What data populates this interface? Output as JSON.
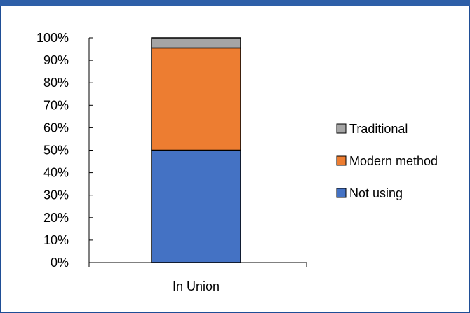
{
  "chart_data": {
    "type": "bar",
    "stacked": true,
    "categories": [
      "In Union"
    ],
    "series": [
      {
        "name": "Not using",
        "values": [
          50
        ],
        "color": "#4472c4"
      },
      {
        "name": "Modern method",
        "values": [
          45.5
        ],
        "color": "#ed7d31"
      },
      {
        "name": "Traditional",
        "values": [
          4.5
        ],
        "color": "#a5a5a5"
      }
    ],
    "ylim": [
      0,
      100
    ],
    "y_ticks": [
      "0%",
      "10%",
      "20%",
      "30%",
      "40%",
      "50%",
      "60%",
      "70%",
      "80%",
      "90%",
      "100%"
    ],
    "legend_order": [
      "Traditional",
      "Modern method",
      "Not using"
    ],
    "legend_position": "right",
    "grid": false
  },
  "frame_color": "#1f4e96",
  "bar_outline_color": "#000000"
}
